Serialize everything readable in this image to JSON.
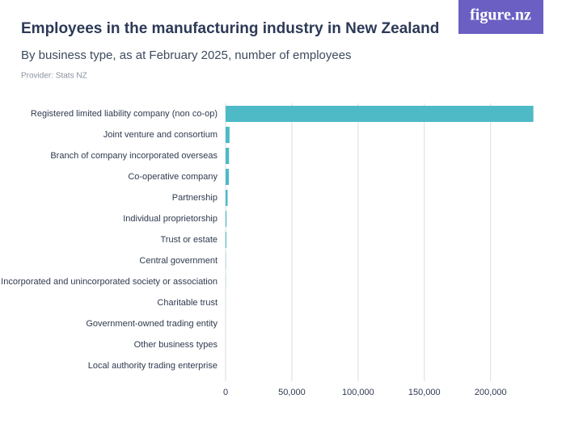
{
  "logo": "figure.nz",
  "chart_data": {
    "type": "bar",
    "orientation": "horizontal",
    "title": "Employees in the manufacturing industry in New Zealand",
    "subtitle": "By business type, as at February 2025, number of employees",
    "source": "Provider: Stats NZ",
    "categories": [
      "Registered limited liability company (non co-op)",
      "Joint venture and consortium",
      "Branch of company incorporated overseas",
      "Co-operative company",
      "Partnership",
      "Individual proprietorship",
      "Trust or estate",
      "Central government",
      "Incorporated and unincorporated society or association",
      "Charitable trust",
      "Government-owned trading entity",
      "Other business types",
      "Local authority trading enterprise"
    ],
    "values": [
      232300,
      3000,
      2600,
      2500,
      1500,
      700,
      600,
      200,
      100,
      50,
      30,
      20,
      10
    ],
    "color": "#4dbac6",
    "xlim": [
      0,
      238000
    ],
    "xticks": [
      0,
      {
        "value": 50000,
        "label": "50,000"
      },
      {
        "value": 100000,
        "label": "100,000"
      },
      {
        "value": 150000,
        "label": "150,000"
      },
      {
        "value": 200000,
        "label": "200,000"
      }
    ],
    "grid": true
  }
}
